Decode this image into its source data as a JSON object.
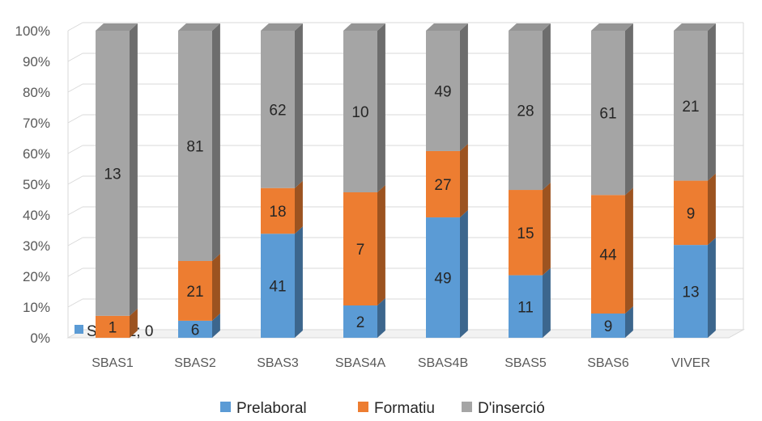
{
  "chart_data": {
    "type": "bar",
    "stacked": "percent",
    "three_d": true,
    "categories": [
      "SBAS1",
      "SBAS2",
      "SBAS3",
      "SBAS4A",
      "SBAS4B",
      "SBAS5",
      "SBAS6",
      "VIVER"
    ],
    "series": [
      {
        "name": "Prelaboral",
        "color": "#5B9BD5",
        "values": [
          0,
          6,
          41,
          2,
          49,
          11,
          9,
          13
        ]
      },
      {
        "name": "Formatiu",
        "color": "#ED7D31",
        "values": [
          1,
          21,
          18,
          7,
          27,
          15,
          44,
          9
        ]
      },
      {
        "name": "D'inserció",
        "color": "#A5A5A5",
        "values": [
          13,
          81,
          62,
          10,
          49,
          28,
          61,
          21
        ]
      }
    ],
    "y_ticks": [
      "0%",
      "10%",
      "20%",
      "30%",
      "40%",
      "50%",
      "60%",
      "70%",
      "80%",
      "90%",
      "100%"
    ],
    "ylim": [
      0,
      100
    ],
    "grid": true,
    "legend_position": "bottom",
    "special_label": "SBAS1; 0"
  }
}
